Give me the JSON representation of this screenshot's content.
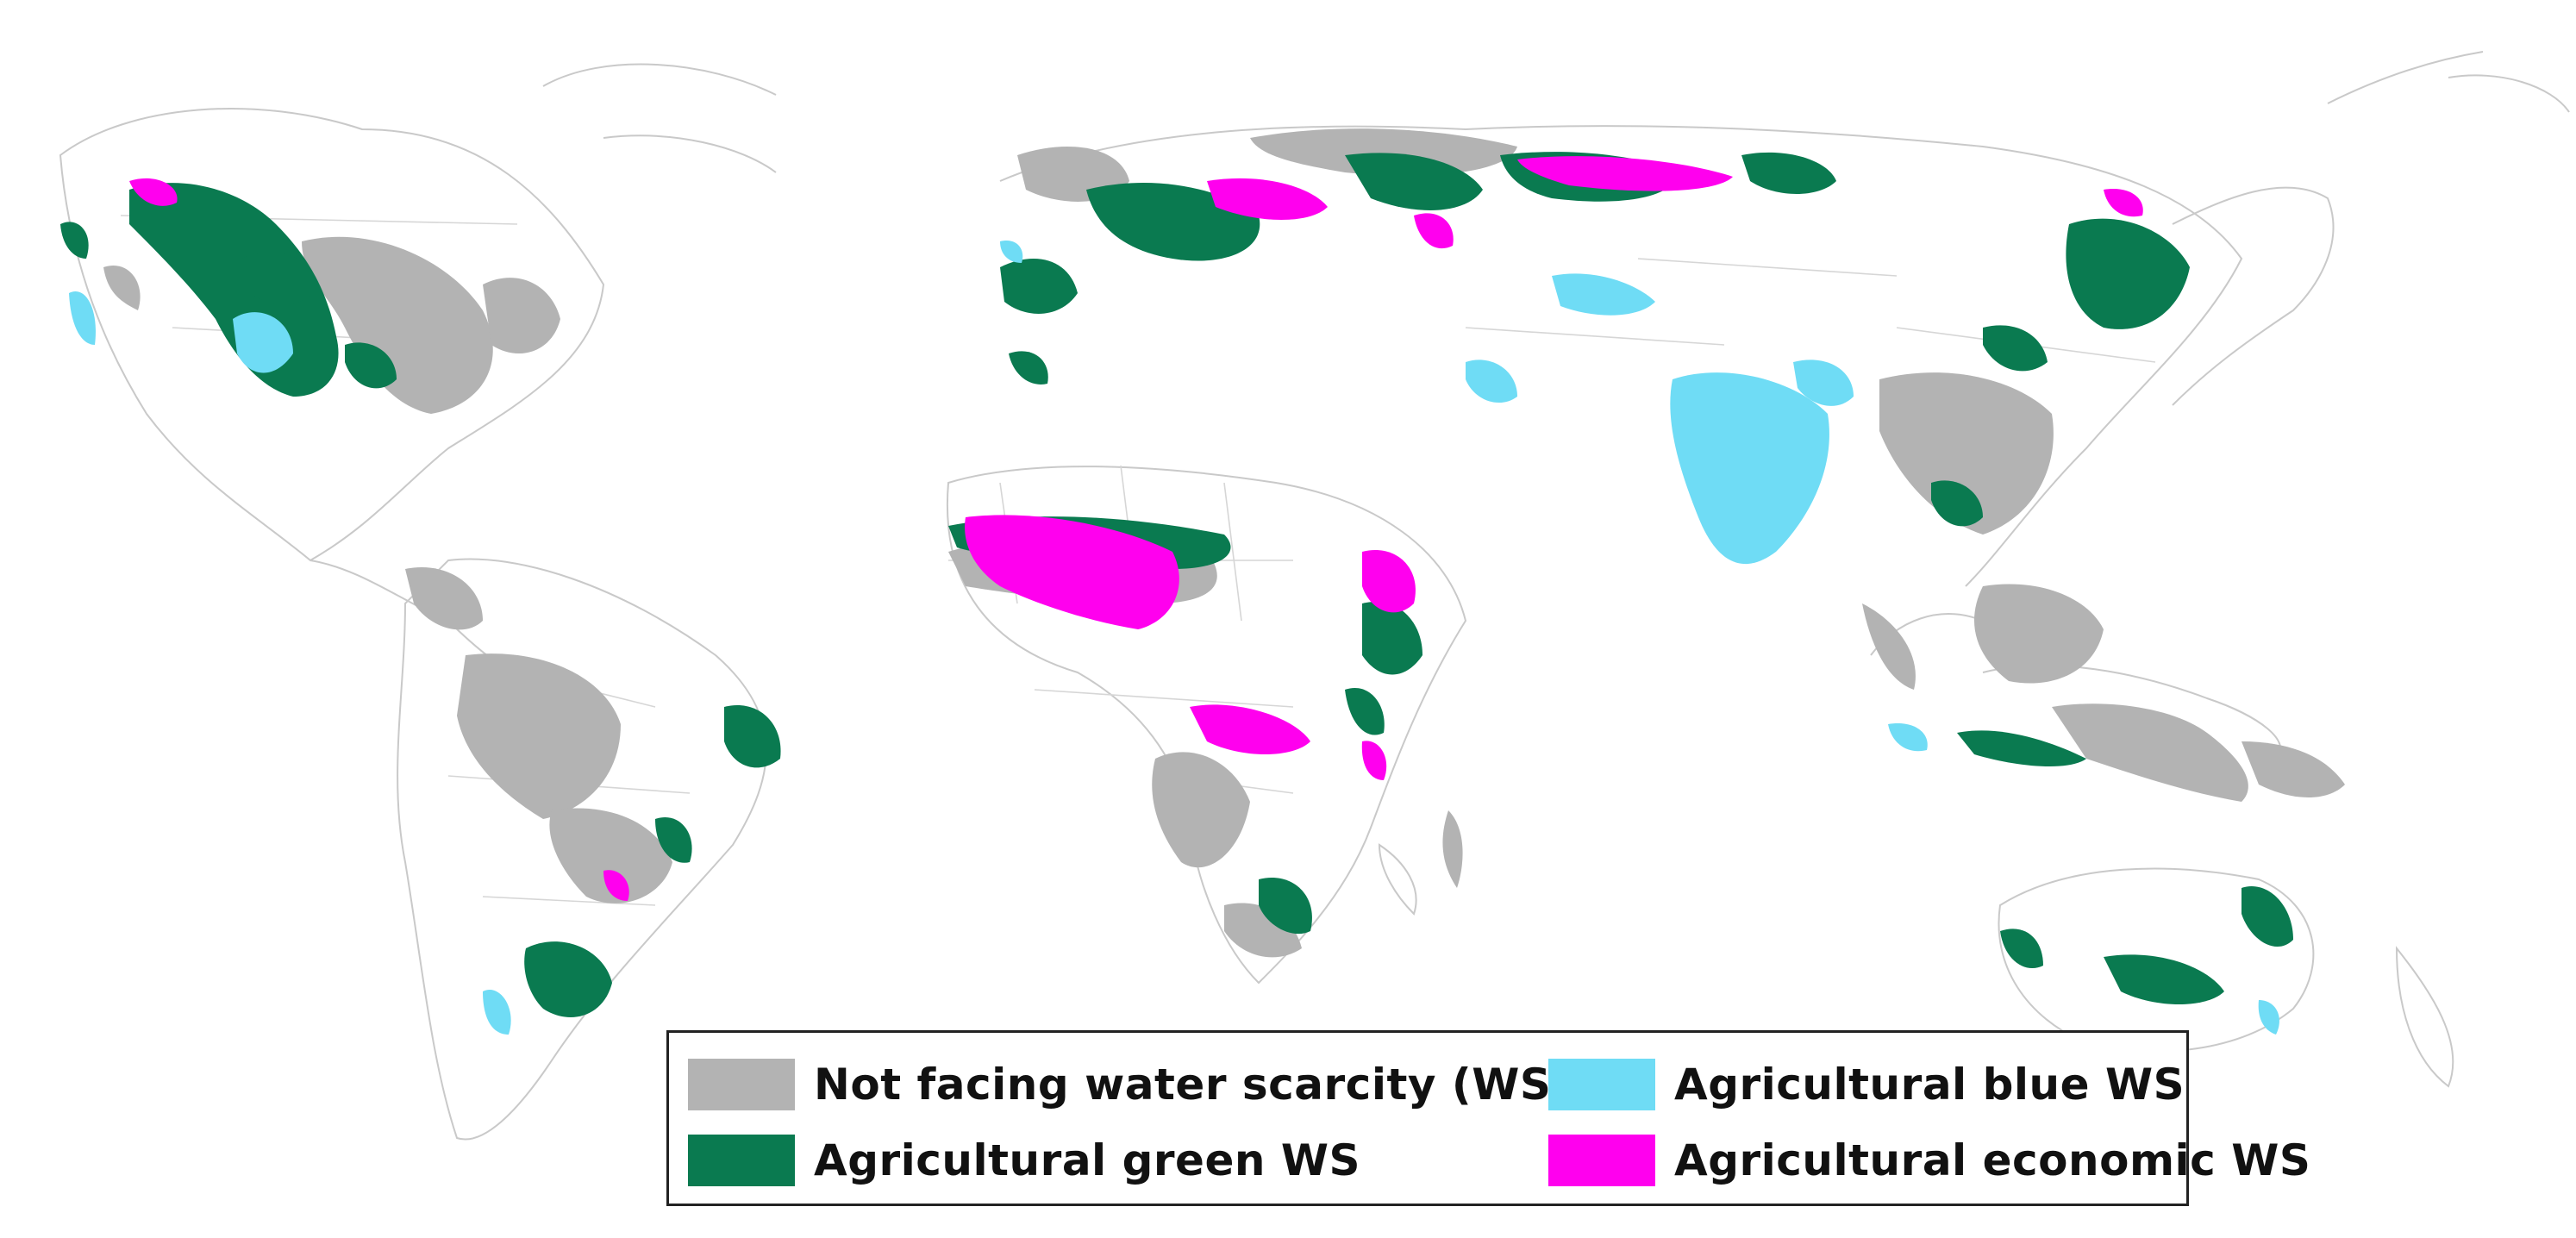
{
  "legend": {
    "items": [
      {
        "label": "Not facing water scarcity (WS)",
        "color": "#b3b3b3"
      },
      {
        "label": "Agricultural green WS",
        "color": "#0a7a50"
      },
      {
        "label": "Agricultural blue WS",
        "color": "#6fdcf5"
      },
      {
        "label": "Agricultural economic WS",
        "color": "#ff00ee"
      }
    ]
  },
  "colors": {
    "background": "#ffffff",
    "outline": "#c9c9c9",
    "legend_border": "#222222"
  }
}
